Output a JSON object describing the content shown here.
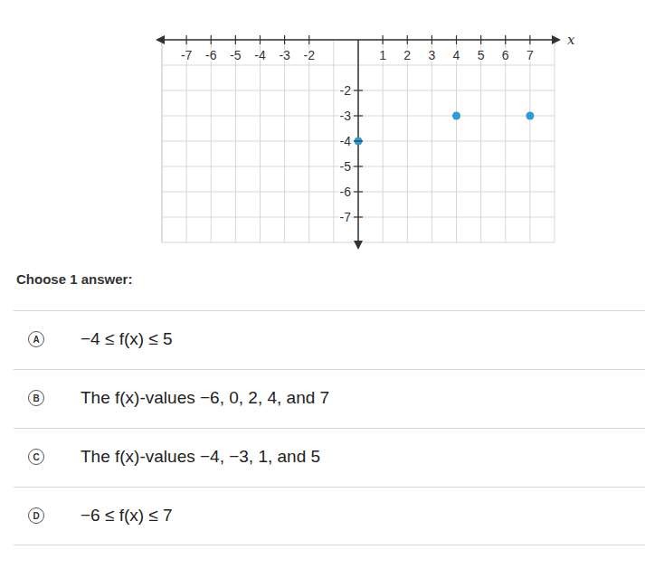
{
  "chart_data": {
    "type": "scatter",
    "x": [
      0,
      4,
      7
    ],
    "values": [
      -4,
      -3,
      -3
    ],
    "color": "#2f9ad6",
    "xlabel": "x",
    "xlim": [
      -8,
      8
    ],
    "ylim": [
      -8,
      0
    ],
    "xticks": [
      -7,
      -6,
      -5,
      -4,
      -3,
      -2,
      1,
      2,
      3,
      4,
      5,
      6,
      7
    ],
    "yticks": [
      -7,
      -6,
      -5,
      -4,
      -3,
      -2
    ],
    "grid": true
  },
  "prompt": "Choose 1 answer:",
  "answers": [
    {
      "letter": "A",
      "text": "−4 ≤ f(x) ≤ 5"
    },
    {
      "letter": "B",
      "text": "The f(x)-values −6, 0, 2, 4, and 7"
    },
    {
      "letter": "C",
      "text": "The f(x)-values −4, −3, 1, and 5"
    },
    {
      "letter": "D",
      "text": "−6 ≤ f(x) ≤ 7"
    }
  ]
}
